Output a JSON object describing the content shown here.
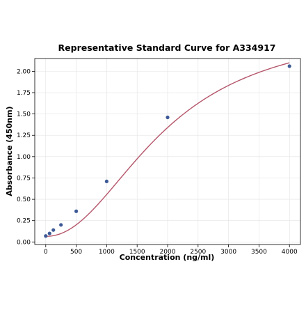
{
  "chart_data": {
    "type": "scatter",
    "title": "Representative Standard Curve for A334917",
    "xlabel": "Concentration (ng/ml)",
    "ylabel": "Absorbance (450nm)",
    "xlim": [
      -180,
      4180
    ],
    "ylim": [
      -0.03,
      2.15
    ],
    "x_ticks": [
      0,
      500,
      1000,
      1500,
      2000,
      2500,
      3000,
      3500,
      4000
    ],
    "y_ticks": [
      0.0,
      0.25,
      0.5,
      0.75,
      1.0,
      1.25,
      1.5,
      1.75,
      2.0
    ],
    "x_tick_labels": [
      "0",
      "500",
      "1000",
      "1500",
      "2000",
      "2500",
      "3000",
      "3500",
      "4000"
    ],
    "y_tick_labels": [
      "0.00",
      "0.25",
      "0.50",
      "0.75",
      "1.00",
      "1.25",
      "1.50",
      "1.75",
      "2.00"
    ],
    "grid": true,
    "series": [
      {
        "kind": "points",
        "x": [
          0,
          62.5,
          125,
          250,
          500,
          1000,
          2000,
          4000
        ],
        "y": [
          0.07,
          0.1,
          0.14,
          0.2,
          0.36,
          0.71,
          1.46,
          2.06
        ],
        "color": "#3d5a96"
      },
      {
        "kind": "fitted-curve",
        "model": "4PL",
        "params": {
          "a": 0.066,
          "b": 2.1,
          "c": 1950,
          "d": 2.55
        },
        "x_range": [
          0,
          4000
        ],
        "color": "#b5566b"
      }
    ]
  }
}
